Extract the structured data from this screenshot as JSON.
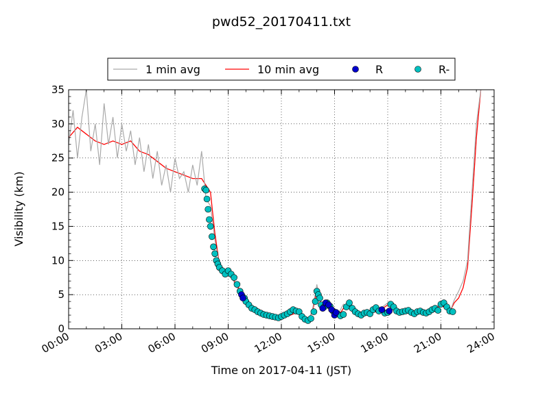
{
  "chart_data": {
    "type": "line",
    "title": "pwd52_20170411.txt",
    "xlabel": "Time on 2017-04-11 (JST)",
    "ylabel": "Visibility (km)",
    "xlim": [
      "00:00",
      "24:00"
    ],
    "ylim": [
      0,
      35
    ],
    "x_ticks": [
      "00:00",
      "03:00",
      "06:00",
      "09:00",
      "12:00",
      "15:00",
      "18:00",
      "21:00",
      "24:00"
    ],
    "y_ticks": [
      "0",
      "5",
      "10",
      "15",
      "20",
      "25",
      "30",
      "35"
    ],
    "grid": true,
    "legend_position": "top",
    "legend": [
      "1 min avg",
      "10 min avg",
      "R",
      "R-"
    ],
    "colors": {
      "one_min": "#a9a9a9",
      "ten_min": "#ff0000",
      "R": "#0000cc",
      "R_minus": "#00c0c0"
    },
    "series": [
      {
        "name": "10 min avg",
        "x": [
          "00:00",
          "00:30",
          "01:00",
          "01:30",
          "02:00",
          "02:30",
          "03:00",
          "03:30",
          "04:00",
          "04:30",
          "05:00",
          "05:30",
          "06:00",
          "06:30",
          "07:00",
          "07:30",
          "07:45",
          "08:00",
          "08:15",
          "08:30",
          "09:00",
          "09:30",
          "10:00",
          "10:30",
          "11:00",
          "11:30",
          "12:00",
          "12:30",
          "13:00",
          "13:15",
          "13:30",
          "13:45",
          "14:00",
          "14:15",
          "14:30",
          "14:45",
          "15:00",
          "15:15",
          "15:30",
          "15:45",
          "16:00",
          "16:30",
          "17:00",
          "17:30",
          "18:00",
          "18:30",
          "19:00",
          "19:30",
          "20:00",
          "20:30",
          "21:00",
          "21:15",
          "21:30",
          "21:45",
          "22:00",
          "22:15",
          "22:30",
          "22:45",
          "23:00",
          "23:15"
        ],
        "values": [
          28,
          29.5,
          28.5,
          27.5,
          27,
          27.5,
          27,
          27.5,
          26,
          25.5,
          24.5,
          23.5,
          23,
          22.5,
          22,
          22,
          21,
          20,
          14,
          9.5,
          8,
          6.5,
          3.5,
          2.5,
          2,
          1.8,
          1.7,
          2,
          2.5,
          1.5,
          1.2,
          2.5,
          5.5,
          3.5,
          3.5,
          3,
          2.2,
          2,
          3,
          3.5,
          2.5,
          2.2,
          2.3,
          2.6,
          3.5,
          2.4,
          2.6,
          2.3,
          2.4,
          2.5,
          3.5,
          3,
          2.5,
          3.8,
          4.5,
          6,
          9,
          18,
          28,
          35
        ]
      },
      {
        "name": "1 min avg",
        "x": [
          "00:00",
          "00:15",
          "00:30",
          "00:45",
          "01:00",
          "01:15",
          "01:30",
          "01:45",
          "02:00",
          "02:15",
          "02:30",
          "02:45",
          "03:00",
          "03:15",
          "03:30",
          "03:45",
          "04:00",
          "04:15",
          "04:30",
          "04:45",
          "05:00",
          "05:15",
          "05:30",
          "05:45",
          "06:00",
          "06:15",
          "06:30",
          "06:45",
          "07:00",
          "07:15",
          "07:30",
          "07:45",
          "08:00",
          "08:15",
          "08:30",
          "08:45",
          "09:00",
          "09:30",
          "10:00",
          "10:30",
          "11:00",
          "11:30",
          "12:00",
          "12:30",
          "13:00",
          "13:15",
          "13:30",
          "13:45",
          "14:00",
          "14:15",
          "14:30",
          "14:45",
          "15:00",
          "15:15",
          "15:30",
          "15:45",
          "16:00",
          "16:30",
          "17:00",
          "17:30",
          "18:00",
          "18:30",
          "19:00",
          "19:30",
          "20:00",
          "20:30",
          "21:00",
          "21:15",
          "21:30",
          "21:45",
          "22:00",
          "22:15",
          "22:30",
          "22:45",
          "23:00",
          "23:15"
        ],
        "values": [
          27,
          32,
          25,
          31,
          35,
          26,
          30,
          24,
          33,
          27,
          31,
          25,
          30,
          26,
          29,
          24,
          28,
          23,
          27,
          22,
          26,
          21,
          24,
          20,
          25,
          22,
          23,
          20,
          24,
          21,
          26,
          19,
          18,
          13,
          9.5,
          8,
          8.5,
          6,
          3.8,
          2.7,
          2.2,
          1.9,
          1.8,
          2.2,
          2.8,
          1.6,
          1.1,
          2.7,
          6.5,
          3.4,
          3.8,
          3.1,
          2.1,
          2.4,
          3.6,
          3.2,
          2.6,
          2.3,
          2.4,
          2.8,
          3.8,
          2.3,
          2.8,
          2.2,
          2.5,
          2.6,
          3.9,
          3.1,
          2.4,
          4.2,
          5.5,
          7,
          10,
          20,
          30,
          35
        ]
      }
    ],
    "points": {
      "R": {
        "name": "R",
        "x": [
          "09:45",
          "09:50",
          "14:20",
          "14:30",
          "14:40",
          "14:50",
          "15:00",
          "15:05",
          "17:40",
          "18:05"
        ],
        "values": [
          5,
          4.5,
          3,
          3.8,
          3.5,
          2.8,
          2,
          2.4,
          2.8,
          2.6
        ]
      },
      "R_minus": {
        "name": "R-",
        "x": [
          "07:40",
          "07:45",
          "07:48",
          "07:52",
          "07:56",
          "08:00",
          "08:05",
          "08:10",
          "08:15",
          "08:20",
          "08:25",
          "08:30",
          "08:40",
          "08:50",
          "09:00",
          "09:10",
          "09:20",
          "09:30",
          "09:40",
          "09:55",
          "10:00",
          "10:10",
          "10:20",
          "10:30",
          "10:40",
          "10:50",
          "11:00",
          "11:10",
          "11:20",
          "11:30",
          "11:40",
          "11:50",
          "12:00",
          "12:10",
          "12:20",
          "12:30",
          "12:40",
          "12:50",
          "13:00",
          "13:10",
          "13:20",
          "13:30",
          "13:40",
          "13:50",
          "13:55",
          "14:00",
          "14:05",
          "14:10",
          "14:15",
          "14:25",
          "14:35",
          "14:45",
          "14:55",
          "15:10",
          "15:20",
          "15:30",
          "15:40",
          "15:50",
          "16:00",
          "16:10",
          "16:20",
          "16:30",
          "16:40",
          "16:50",
          "17:00",
          "17:10",
          "17:20",
          "17:30",
          "17:50",
          "18:00",
          "18:10",
          "18:20",
          "18:30",
          "18:40",
          "18:50",
          "19:00",
          "19:10",
          "19:20",
          "19:30",
          "19:40",
          "19:50",
          "20:00",
          "20:10",
          "20:20",
          "20:30",
          "20:40",
          "20:50",
          "21:00",
          "21:10",
          "21:20",
          "21:30",
          "21:40"
        ],
        "values": [
          20.5,
          20.3,
          19,
          17.5,
          16,
          15,
          13.5,
          12,
          11,
          10,
          9.5,
          9,
          8.5,
          8,
          8.5,
          8,
          7.5,
          6.5,
          5.5,
          4.5,
          4,
          3.5,
          3,
          2.8,
          2.5,
          2.3,
          2.1,
          2,
          1.9,
          1.8,
          1.7,
          1.6,
          1.8,
          2,
          2.2,
          2.5,
          2.8,
          2.6,
          2.5,
          1.8,
          1.4,
          1.2,
          1.5,
          2.5,
          4,
          5.5,
          5,
          4.5,
          3.5,
          3.2,
          3.8,
          3.3,
          2.6,
          2.2,
          1.9,
          2.1,
          3.2,
          3.8,
          3,
          2.5,
          2.2,
          2,
          2.3,
          2.4,
          2.2,
          2.8,
          3.1,
          2.6,
          2.3,
          2.4,
          3.6,
          3.2,
          2.6,
          2.4,
          2.5,
          2.6,
          2.7,
          2.4,
          2.2,
          2.5,
          2.6,
          2.4,
          2.3,
          2.5,
          2.8,
          3,
          2.7,
          3.6,
          3.8,
          3.2,
          2.6,
          2.5
        ]
      }
    }
  }
}
